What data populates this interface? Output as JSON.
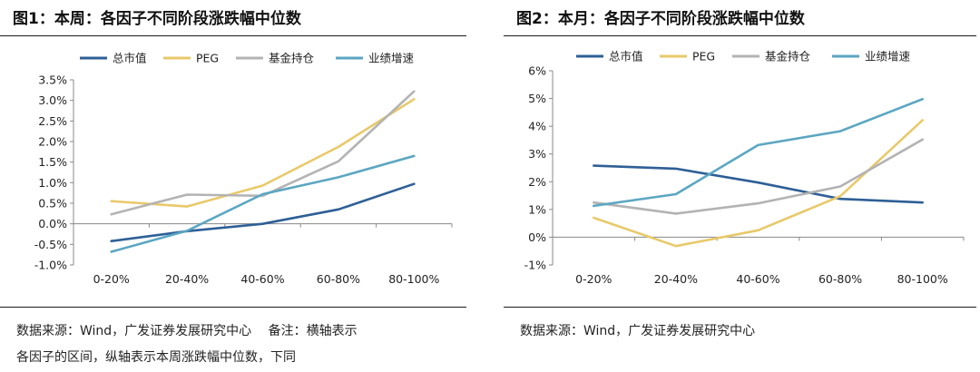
{
  "colors": {
    "总市值": "#2e5f96",
    "PEG": "#e8c96a",
    "基金持仓": "#b3b3b3",
    "业绩增速": "#5ba6c2"
  },
  "left": {
    "title": "图1：本周：各因子不同阶段涨跌幅中位数",
    "source_line1": "数据来源：Wind，广发证券发展研究中心　 备注：横轴表示",
    "source_line2": "各因子的区间，纵轴表示本周涨跌幅中位数，下同"
  },
  "right": {
    "title": "图2：本月：各因子不同阶段涨跌幅中位数",
    "source_line1": "数据来源：Wind，广发证券发展研究中心"
  },
  "chart_data": [
    {
      "type": "line",
      "title": "图1：本周：各因子不同阶段涨跌幅中位数",
      "categories": [
        "0-20%",
        "20-40%",
        "40-60%",
        "60-80%",
        "80-100%"
      ],
      "ylim": [
        -1.0,
        3.5
      ],
      "yticks": [
        -1.0,
        -0.5,
        0.0,
        0.5,
        1.0,
        1.5,
        2.0,
        2.5,
        3.0,
        3.5
      ],
      "ytick_labels": [
        "-1.0%",
        "-0.5%",
        "0.0%",
        "0.5%",
        "1.0%",
        "1.5%",
        "2.0%",
        "2.5%",
        "3.0%",
        "3.5%"
      ],
      "unit": "%",
      "legend": "top",
      "series": [
        {
          "name": "总市值",
          "values": [
            -0.42,
            -0.18,
            0.0,
            0.35,
            0.97
          ]
        },
        {
          "name": "PEG",
          "values": [
            0.55,
            0.42,
            0.93,
            1.87,
            3.03
          ]
        },
        {
          "name": "基金持仓",
          "values": [
            0.23,
            0.71,
            0.68,
            1.52,
            3.22
          ]
        },
        {
          "name": "业绩增速",
          "values": [
            -0.68,
            -0.17,
            0.72,
            1.13,
            1.65
          ]
        }
      ]
    },
    {
      "type": "line",
      "title": "图2：本月：各因子不同阶段涨跌幅中位数",
      "categories": [
        "0-20%",
        "20-40%",
        "40-60%",
        "60-80%",
        "80-100%"
      ],
      "ylim": [
        -1,
        6
      ],
      "yticks": [
        -1,
        0,
        1,
        2,
        3,
        4,
        5,
        6
      ],
      "ytick_labels": [
        "-1%",
        "0%",
        "1%",
        "2%",
        "3%",
        "4%",
        "5%",
        "6%"
      ],
      "unit": "%",
      "legend": "top",
      "series": [
        {
          "name": "总市值",
          "values": [
            2.58,
            2.47,
            1.97,
            1.38,
            1.25
          ]
        },
        {
          "name": "PEG",
          "values": [
            0.7,
            -0.32,
            0.25,
            1.48,
            4.22
          ]
        },
        {
          "name": "基金持仓",
          "values": [
            1.25,
            0.85,
            1.22,
            1.83,
            3.52
          ]
        },
        {
          "name": "业绩增速",
          "values": [
            1.13,
            1.55,
            3.32,
            3.82,
            4.98
          ]
        }
      ]
    }
  ]
}
